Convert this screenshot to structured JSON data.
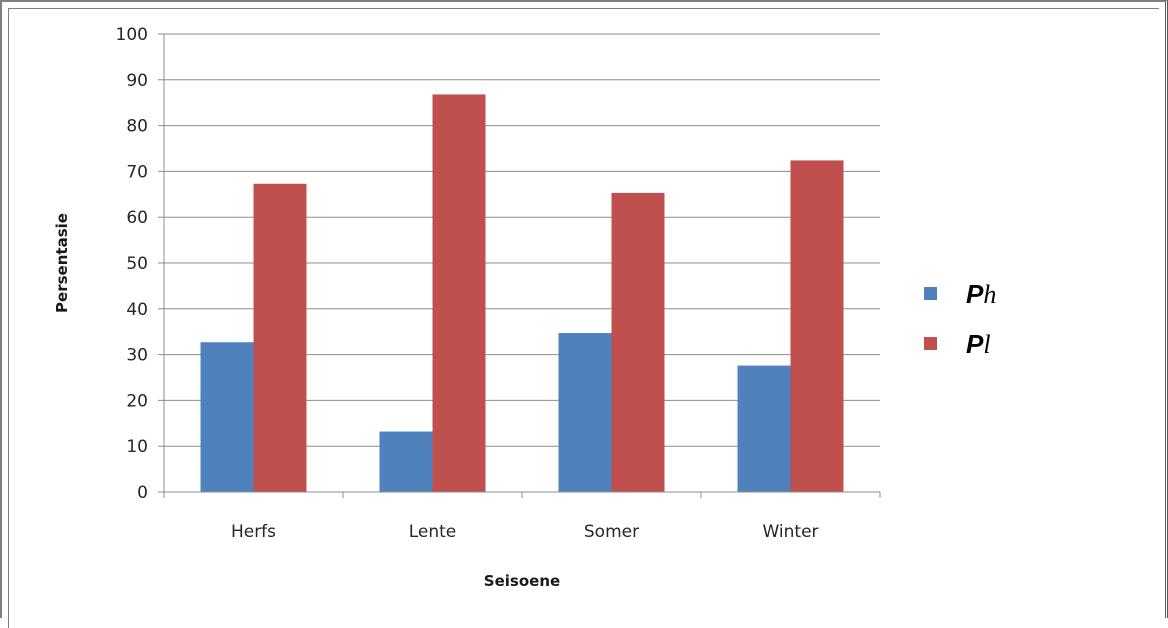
{
  "chart_data": {
    "type": "bar",
    "title": "",
    "xlabel": "Seisoene",
    "ylabel": "Persentasie",
    "ylim": [
      0,
      100
    ],
    "yticks": [
      0,
      10,
      20,
      30,
      40,
      50,
      60,
      70,
      80,
      90,
      100
    ],
    "categories": [
      "Herfs",
      "Lente",
      "Somer",
      "Winter"
    ],
    "series": [
      {
        "name": "Ph",
        "name_main": "P",
        "name_sub": "h",
        "color": "#4f81bd",
        "values": [
          32.7,
          13.2,
          34.7,
          27.6
        ]
      },
      {
        "name": "Pl",
        "name_main": "P",
        "name_sub": "l",
        "color": "#c0504d",
        "values": [
          67.3,
          86.8,
          65.3,
          72.4
        ]
      }
    ],
    "grid": true,
    "legend_position": "right"
  }
}
